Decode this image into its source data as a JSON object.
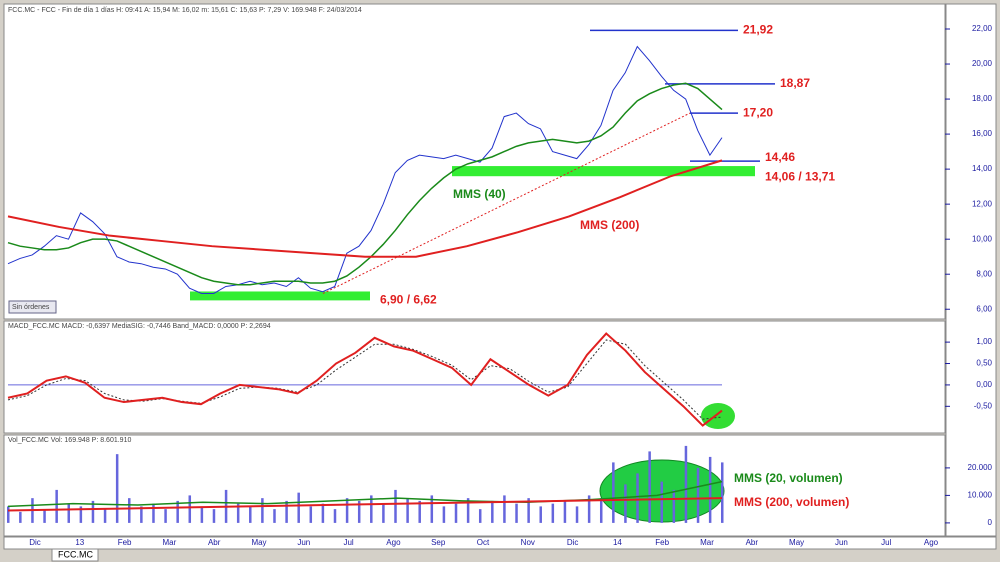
{
  "chart_data": [
    {
      "type": "line",
      "header": "FCC.MC - FCC - Fin de día 1 días H: 09:41 A: 15,94 M: 16,02 m: 15,61 C: 15,63 P: 7,29 V: 169.948 F: 24/03/2014",
      "button": "Sin órdenes",
      "ylim": [
        5.5,
        22.8
      ],
      "yticks": [
        {
          "value": 6,
          "label": "6,00"
        },
        {
          "value": 8,
          "label": "8,00"
        },
        {
          "value": 10,
          "label": "10,00"
        },
        {
          "value": 12,
          "label": "12,00"
        },
        {
          "value": 14,
          "label": "14,00"
        },
        {
          "value": 16,
          "label": "16,00"
        },
        {
          "value": 18,
          "label": "18,00"
        },
        {
          "value": 20,
          "label": "20,00"
        },
        {
          "value": 22,
          "label": "22,00"
        }
      ],
      "series": [
        {
          "name": "FCC.MC",
          "color": "#2233cc",
          "values": [
            8.6,
            8.9,
            9.1,
            9.6,
            10.2,
            10.0,
            11.5,
            11.0,
            10.3,
            9.0,
            8.7,
            8.6,
            8.4,
            8.3,
            8.0,
            7.2,
            6.9,
            6.9,
            7.3,
            7.4,
            7.6,
            7.4,
            7.5,
            7.3,
            7.8,
            7.2,
            7.0,
            7.3,
            9.2,
            9.6,
            10.5,
            12.0,
            13.8,
            14.5,
            14.8,
            14.7,
            14.6,
            14.8,
            14.6,
            14.4,
            15.2,
            17.0,
            17.2,
            16.6,
            16.3,
            15.0,
            14.8,
            14.6,
            15.4,
            16.5,
            18.5,
            19.5,
            21.0,
            20.2,
            19.3,
            18.5,
            18.0,
            16.2,
            14.8,
            15.8
          ]
        },
        {
          "name": "MMS (40)",
          "color": "#1a8a1a",
          "values": [
            9.8,
            9.6,
            9.5,
            9.4,
            9.4,
            9.5,
            9.8,
            10.0,
            10.0,
            9.9,
            9.6,
            9.3,
            9.0,
            8.7,
            8.4,
            8.1,
            7.8,
            7.6,
            7.5,
            7.4,
            7.4,
            7.5,
            7.6,
            7.6,
            7.6,
            7.5,
            7.5,
            7.6,
            7.9,
            8.4,
            9.0,
            9.7,
            10.5,
            11.4,
            12.2,
            12.9,
            13.5,
            14.0,
            14.3,
            14.5,
            14.7,
            15.0,
            15.3,
            15.5,
            15.6,
            15.7,
            15.6,
            15.5,
            15.6,
            15.9,
            16.4,
            17.2,
            17.9,
            18.3,
            18.6,
            18.8,
            18.9,
            18.6,
            18.0,
            17.4
          ]
        },
        {
          "name": "MMS (200)",
          "color": "#e02020",
          "values": [
            11.3,
            10.7,
            10.2,
            9.9,
            9.6,
            9.4,
            9.2,
            9.0,
            9.0,
            9.6,
            10.4,
            11.3,
            12.4,
            13.6,
            14.5
          ]
        }
      ],
      "trendline": [
        6.9,
        17.2
      ],
      "levels": [
        {
          "label": "21,92",
          "value": 21.92
        },
        {
          "label": "18,87",
          "value": 18.87
        },
        {
          "label": "17,20",
          "value": 17.2
        },
        {
          "label": "14,46",
          "value": 14.46
        }
      ],
      "bands": [
        {
          "label": "14,06 / 13,71",
          "values": [
            14.06,
            13.71
          ]
        },
        {
          "label": "6,90 / 6,62",
          "values": [
            6.9,
            6.62
          ]
        }
      ]
    },
    {
      "type": "line",
      "header": "MACD_FCC.MC  MACD: -0,6397  MediaSIG: -0,7446  Band_MACD: 0,0000  P: 2,2694",
      "ylim": [
        -1.1,
        1.47
      ],
      "yticks": [
        {
          "value": -0.5,
          "label": "-0,50"
        },
        {
          "value": 0,
          "label": "0,00"
        },
        {
          "value": 0.5,
          "label": "0,50"
        },
        {
          "value": 1,
          "label": "1,00"
        }
      ],
      "series": [
        {
          "name": "MACD",
          "color": "#e02020",
          "values": [
            -0.3,
            -0.2,
            0.1,
            0.2,
            0.05,
            -0.3,
            -0.4,
            -0.35,
            -0.3,
            -0.4,
            -0.45,
            -0.2,
            0.0,
            -0.05,
            -0.1,
            -0.2,
            0.1,
            0.5,
            0.75,
            1.1,
            0.9,
            0.8,
            0.6,
            0.4,
            0.0,
            0.6,
            0.3,
            0.0,
            -0.25,
            0.0,
            0.7,
            1.2,
            0.8,
            0.3,
            -0.1,
            -0.5,
            -0.95,
            -0.6
          ]
        },
        {
          "name": "MediaSIG",
          "color": "#333333",
          "values": [
            -0.35,
            -0.25,
            0.0,
            0.15,
            0.1,
            -0.2,
            -0.35,
            -0.38,
            -0.32,
            -0.38,
            -0.43,
            -0.28,
            -0.08,
            -0.05,
            -0.08,
            -0.17,
            0.0,
            0.35,
            0.65,
            0.95,
            0.95,
            0.83,
            0.66,
            0.46,
            0.12,
            0.45,
            0.38,
            0.08,
            -0.17,
            -0.05,
            0.5,
            1.05,
            0.95,
            0.45,
            0.05,
            -0.35,
            -0.8,
            -0.75
          ]
        }
      ]
    },
    {
      "type": "bar",
      "header": "Vol_FCC.MC  Vol: 169.948  P: 8.601.910",
      "ylim": [
        -4400,
        31600
      ],
      "yticks": [
        0,
        {
          "value": 10000,
          "label": "10.000"
        },
        {
          "value": 20000,
          "label": "20.000"
        }
      ],
      "values": [
        6000,
        4000,
        9000,
        5000,
        12000,
        7000,
        6000,
        8000,
        5000,
        25000,
        9000,
        6000,
        7000,
        5000,
        8000,
        10000,
        6000,
        5000,
        12000,
        7000,
        6000,
        9000,
        5000,
        8000,
        11000,
        6000,
        7000,
        5000,
        9000,
        8000,
        10000,
        7000,
        12000,
        9000,
        8000,
        10000,
        6000,
        7000,
        9000,
        5000,
        8000,
        10000,
        7000,
        9000,
        6000,
        7000,
        8000,
        6000,
        10000,
        9000,
        22000,
        14000,
        18000,
        26000,
        15000,
        12000,
        28000,
        20000,
        24000,
        22000
      ],
      "color": "#6666dd",
      "series": [
        {
          "name": "MMS (20, volumen)",
          "color": "#1a8a1a",
          "values": [
            6000,
            7000,
            6500,
            7500,
            7000,
            8000,
            9000,
            8000,
            7500,
            8500,
            10000,
            15000
          ]
        },
        {
          "name": "MMS (200, volumen)",
          "color": "#e02020",
          "values": [
            4500,
            5000,
            5500,
            6000,
            6500,
            7000,
            7500,
            8000,
            8500,
            9000
          ]
        }
      ]
    },
    {
      "type": "axis",
      "categories": [
        "Dic",
        "13",
        "Feb",
        "Mar",
        "Abr",
        "May",
        "Jun",
        "Jul",
        "Ago",
        "Sep",
        "Oct",
        "Nov",
        "Dic",
        "14",
        "Feb",
        "Mar",
        "Abr",
        "May",
        "Jun",
        "Jul",
        "Ago"
      ],
      "tab": "FCC.MC"
    }
  ]
}
